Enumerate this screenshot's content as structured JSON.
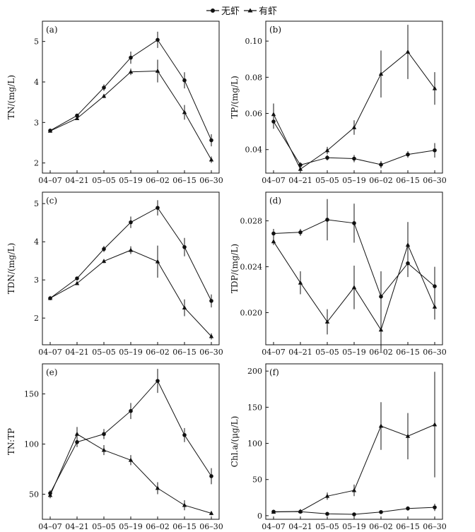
{
  "legend": [
    {
      "label": "无虾",
      "marker": "circle"
    },
    {
      "label": "有虾",
      "marker": "triangle"
    }
  ],
  "chart_data": [
    {
      "type": "line",
      "panel_label": "(a)",
      "ylabel": "TN/(mg/L)",
      "x": [
        "04–07",
        "04–21",
        "05–05",
        "05–19",
        "06–02",
        "06–15",
        "06–30"
      ],
      "ylim": [
        1.75,
        5.5
      ],
      "yticks": [
        2,
        3,
        4,
        5
      ],
      "series": [
        {
          "name": "无虾",
          "marker": "circle",
          "values": [
            2.8,
            3.17,
            3.86,
            4.6,
            5.04,
            4.04,
            2.56
          ],
          "errors": [
            0.03,
            0.04,
            0.08,
            0.15,
            0.2,
            0.2,
            0.15
          ]
        },
        {
          "name": "有虾",
          "marker": "triangle",
          "values": [
            2.79,
            3.1,
            3.65,
            4.25,
            4.27,
            3.25,
            2.08
          ],
          "errors": [
            0.03,
            0.04,
            0.05,
            0.08,
            0.28,
            0.18,
            0.08
          ]
        }
      ]
    },
    {
      "type": "line",
      "panel_label": "(b)",
      "ylabel": "TP/(mg/L)",
      "x": [
        "04–07",
        "04–21",
        "05–05",
        "05–19",
        "06–02",
        "06–15",
        "06–30"
      ],
      "ylim": [
        0.027,
        0.111
      ],
      "yticks": [
        0.04,
        0.06,
        0.08,
        0.1
      ],
      "series": [
        {
          "name": "无虾",
          "marker": "circle",
          "values": [
            0.0555,
            0.0315,
            0.0355,
            0.035,
            0.0317,
            0.0373,
            0.0396
          ],
          "errors": [
            0.004,
            0.0015,
            0.0015,
            0.002,
            0.002,
            0.0018,
            0.004
          ]
        },
        {
          "name": "有虾",
          "marker": "triangle",
          "values": [
            0.0595,
            0.0292,
            0.0395,
            0.0522,
            0.0818,
            0.094,
            0.0738
          ],
          "errors": [
            0.006,
            0.002,
            0.002,
            0.004,
            0.013,
            0.015,
            0.009
          ]
        }
      ]
    },
    {
      "type": "line",
      "panel_label": "(c)",
      "ylabel": "TDN/(mg/L)",
      "x": [
        "04–07",
        "04–21",
        "05–05",
        "05–19",
        "06–02",
        "06–15",
        "06–30"
      ],
      "ylim": [
        1.3,
        5.3
      ],
      "yticks": [
        2,
        3,
        4,
        5
      ],
      "series": [
        {
          "name": "无虾",
          "marker": "circle",
          "values": [
            2.52,
            3.04,
            3.81,
            4.51,
            4.89,
            3.86,
            2.45
          ],
          "errors": [
            0.03,
            0.03,
            0.08,
            0.15,
            0.2,
            0.24,
            0.17
          ]
        },
        {
          "name": "有虾",
          "marker": "triangle",
          "values": [
            2.52,
            2.91,
            3.49,
            3.78,
            3.48,
            2.27,
            1.52
          ],
          "errors": [
            0.03,
            0.03,
            0.05,
            0.1,
            0.42,
            0.22,
            0.08
          ]
        }
      ]
    },
    {
      "type": "line",
      "panel_label": "(d)",
      "ylabel": "TDP/(mg/L)",
      "x": [
        "04–07",
        "04–21",
        "05–05",
        "05–19",
        "06–02",
        "06–15",
        "06–30"
      ],
      "ylim": [
        0.0172,
        0.0305
      ],
      "yticks": [
        0.02,
        0.024,
        0.028
      ],
      "series": [
        {
          "name": "无虾",
          "marker": "circle",
          "values": [
            0.0269,
            0.027,
            0.0281,
            0.0278,
            0.0214,
            0.0243,
            0.0223
          ],
          "errors": [
            0.0004,
            0.0003,
            0.0018,
            0.0017,
            0.0022,
            0.0012,
            0.0017
          ]
        },
        {
          "name": "有虾",
          "marker": "triangle",
          "values": [
            0.0262,
            0.0226,
            0.0192,
            0.0222,
            0.0185,
            0.0259,
            0.0205
          ],
          "errors": [
            0.0003,
            0.001,
            0.0011,
            0.0019,
            0.0019,
            0.002,
            0.0011
          ]
        }
      ]
    },
    {
      "type": "line",
      "panel_label": "(e)",
      "ylabel": "TN:TP",
      "x": [
        "04–07",
        "04–21",
        "05–05",
        "05–19",
        "06–02",
        "06–15",
        "06–30"
      ],
      "ylim": [
        25,
        180
      ],
      "yticks": [
        50,
        100,
        150
      ],
      "series": [
        {
          "name": "无虾",
          "marker": "circle",
          "values": [
            51,
            102,
            110,
            133,
            163,
            109,
            68
          ],
          "errors": [
            3,
            5,
            5,
            8,
            12,
            7,
            8
          ]
        },
        {
          "name": "有虾",
          "marker": "triangle",
          "values": [
            49,
            110,
            94,
            84,
            56,
            39,
            31
          ],
          "errors": [
            3,
            7,
            5,
            5,
            6,
            5,
            2
          ]
        }
      ]
    },
    {
      "type": "line",
      "panel_label": "(f)",
      "ylabel": "Chl.a/(μg/L)",
      "x": [
        "04–07",
        "04–21",
        "05–05",
        "05–19",
        "06–02",
        "06–15",
        "06–30"
      ],
      "ylim": [
        -5,
        210
      ],
      "yticks": [
        0,
        50,
        100,
        150,
        200
      ],
      "series": [
        {
          "name": "无虾",
          "marker": "circle",
          "values": [
            5.5,
            5.5,
            2.5,
            1.8,
            5,
            10,
            11.5
          ],
          "errors": [
            1,
            1,
            0.5,
            0.5,
            1,
            3,
            5
          ]
        },
        {
          "name": "有虾",
          "marker": "triangle",
          "values": [
            5,
            6,
            27,
            35,
            124,
            110,
            126
          ],
          "errors": [
            1,
            1,
            5,
            8,
            33,
            32,
            73
          ]
        }
      ]
    }
  ]
}
